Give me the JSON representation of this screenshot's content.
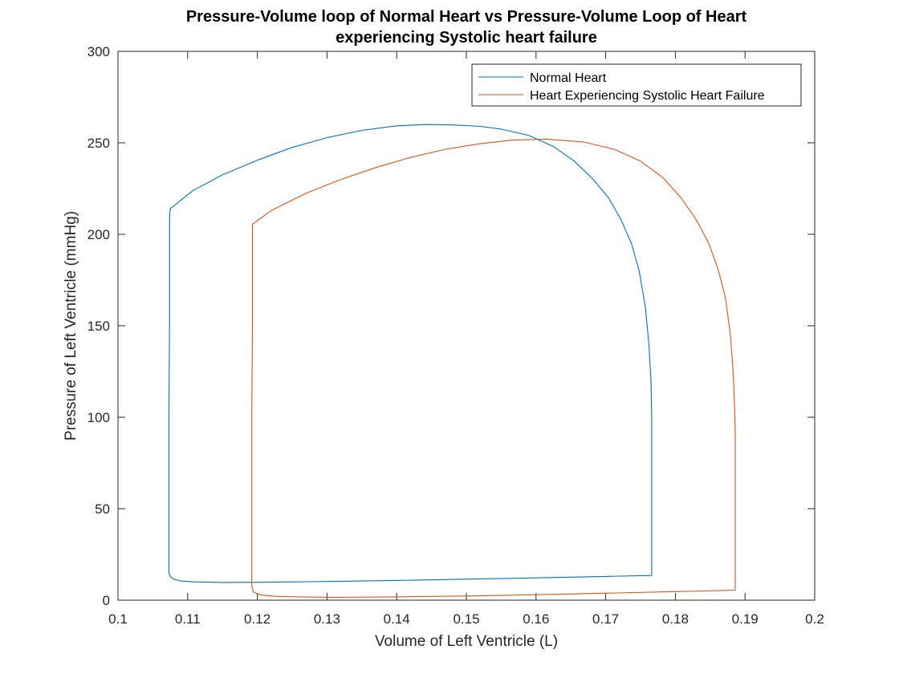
{
  "chart_data": {
    "type": "line",
    "title": [
      "Pressure-Volume loop of Normal Heart vs Pressure-Volume Loop of Heart",
      "experiencing Systolic heart failure"
    ],
    "xlabel": "Volume of Left Ventricle (L)",
    "ylabel": "Pressure of Left Ventricle (mmHg)",
    "xlim": [
      0.1,
      0.2
    ],
    "ylim": [
      0,
      300
    ],
    "xticks": [
      0.1,
      0.11,
      0.12,
      0.13,
      0.14,
      0.15,
      0.16,
      0.17,
      0.18,
      0.19,
      0.2
    ],
    "xtick_labels": [
      "0.1",
      "0.11",
      "0.12",
      "0.13",
      "0.14",
      "0.15",
      "0.16",
      "0.17",
      "0.18",
      "0.19",
      "0.2"
    ],
    "yticks": [
      0,
      50,
      100,
      150,
      200,
      250,
      300
    ],
    "ytick_labels": [
      "0",
      "50",
      "100",
      "150",
      "200",
      "250",
      "300"
    ],
    "grid": false,
    "legend_position": "top-right",
    "series": [
      {
        "name": "Normal Heart",
        "color": "#0072BD",
        "x": [
          0.1766,
          0.1766,
          0.1765,
          0.1762,
          0.1757,
          0.1748,
          0.1737,
          0.1722,
          0.1704,
          0.1682,
          0.1655,
          0.1625,
          0.159,
          0.155,
          0.152,
          0.148,
          0.1442,
          0.14,
          0.135,
          0.13,
          0.125,
          0.12,
          0.115,
          0.1108,
          0.1075,
          0.1074,
          0.1074,
          0.1073,
          0.1073,
          0.1075,
          0.108,
          0.109,
          0.111,
          0.115,
          0.12,
          0.125,
          0.13,
          0.14,
          0.15,
          0.16,
          0.17,
          0.1766
        ],
        "y": [
          13.5,
          100,
          120,
          140,
          160,
          180,
          195,
          208,
          220,
          230,
          240,
          248,
          254,
          257.5,
          259,
          259.8,
          260,
          259.3,
          256.8,
          252.8,
          247.5,
          240.5,
          232.5,
          224,
          214,
          208,
          150,
          100,
          15,
          13,
          11.5,
          10.5,
          10,
          9.7,
          9.8,
          10,
          10.2,
          10.8,
          11.5,
          12.2,
          13,
          13.5
        ]
      },
      {
        "name": "Heart Experiencing Systolic Heart Failure",
        "color": "#D95319",
        "x": [
          0.1886,
          0.1886,
          0.1885,
          0.1883,
          0.1879,
          0.1872,
          0.1862,
          0.1848,
          0.183,
          0.1808,
          0.1782,
          0.175,
          0.1712,
          0.1668,
          0.1615,
          0.1565,
          0.152,
          0.147,
          0.142,
          0.137,
          0.132,
          0.127,
          0.122,
          0.1193,
          0.1193,
          0.1192,
          0.1192,
          0.1194,
          0.1205,
          0.123,
          0.127,
          0.131,
          0.14,
          0.15,
          0.16,
          0.17,
          0.18,
          0.1886
        ],
        "y": [
          5.5,
          92,
          105,
          125,
          145,
          165,
          180,
          195,
          208,
          220,
          231,
          240,
          246.5,
          250.5,
          252,
          251.5,
          249.5,
          246.5,
          242,
          236.5,
          230,
          222.5,
          213,
          205.5,
          150,
          100,
          8,
          4.5,
          2.8,
          2,
          1.7,
          1.6,
          1.8,
          2.3,
          3,
          3.8,
          4.7,
          5.5
        ]
      }
    ]
  }
}
